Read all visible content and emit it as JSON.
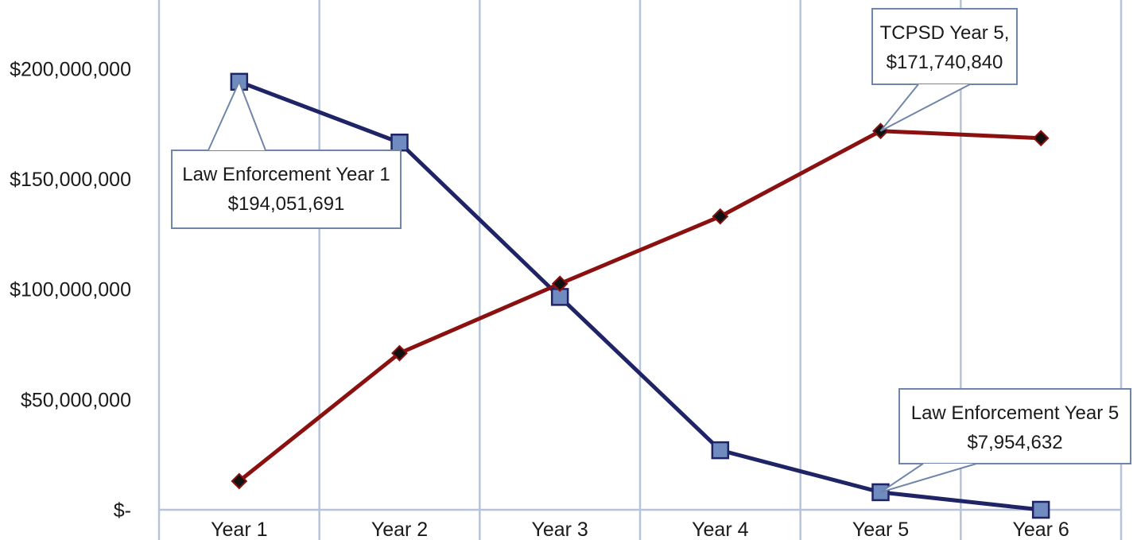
{
  "chart_data": {
    "type": "line",
    "categories": [
      "Year 1",
      "Year 2",
      "Year 3",
      "Year 4",
      "Year 5",
      "Year 6"
    ],
    "series": [
      {
        "values": [
          194051691,
          166500000,
          96500000,
          27000000,
          7954632,
          0
        ],
        "color": "#1f2466",
        "marker": "square",
        "marker_fill": "#6f8bbf"
      },
      {
        "values": [
          13000000,
          71000000,
          102500000,
          133000000,
          171740840,
          168500000
        ],
        "color": "#8b1010",
        "marker": "diamond",
        "marker_fill": "#111111"
      }
    ],
    "ylim": [
      0,
      225000000
    ],
    "yticks": [
      0,
      50000000,
      100000000,
      150000000,
      200000000
    ],
    "ytick_labels": [
      "$-",
      "$50,000,000",
      "$100,000,000",
      "$150,000,000",
      "$200,000,000"
    ],
    "grid": "vertical",
    "annotations": [
      {
        "series": 0,
        "point": 0,
        "lines": [
          "Law Enforcement Year 1",
          "$194,051,691"
        ]
      },
      {
        "series": 1,
        "point": 4,
        "lines": [
          "TCPSD Year 5,",
          "$171,740,840"
        ]
      },
      {
        "series": 0,
        "point": 4,
        "lines": [
          "Law Enforcement Year 5",
          "$7,954,632"
        ]
      }
    ]
  }
}
